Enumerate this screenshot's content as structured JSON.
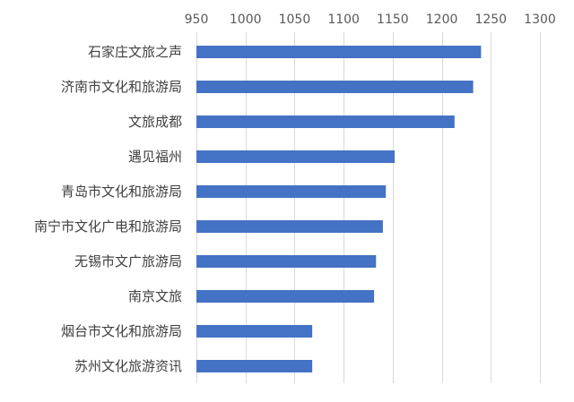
{
  "chart_data": {
    "type": "bar",
    "orientation": "horizontal",
    "categories": [
      "石家庄文旅之声",
      "济南市文化和旅游局",
      "文旅成都",
      "遇见福州",
      "青岛市文化和旅游局",
      "南宁市文化广电和旅游局",
      "无锡市文广旅游局",
      "南京文旅",
      "烟台市文化和旅游局",
      "苏州文化旅游资讯"
    ],
    "values": [
      1240,
      1232,
      1213,
      1152,
      1143,
      1140,
      1133,
      1131,
      1068,
      1068
    ],
    "xlim": [
      950,
      1300
    ],
    "xticks": [
      950,
      1000,
      1050,
      1100,
      1150,
      1200,
      1250,
      1300
    ],
    "xtick_labels": [
      "950",
      "1000",
      "1050",
      "1100",
      "1150",
      "1200",
      "1250",
      "1300"
    ],
    "axis_position": "top",
    "grid": true,
    "bar_color": "#4472c4",
    "grid_color": "#d9d9d9",
    "title": "",
    "xlabel": "",
    "ylabel": ""
  }
}
